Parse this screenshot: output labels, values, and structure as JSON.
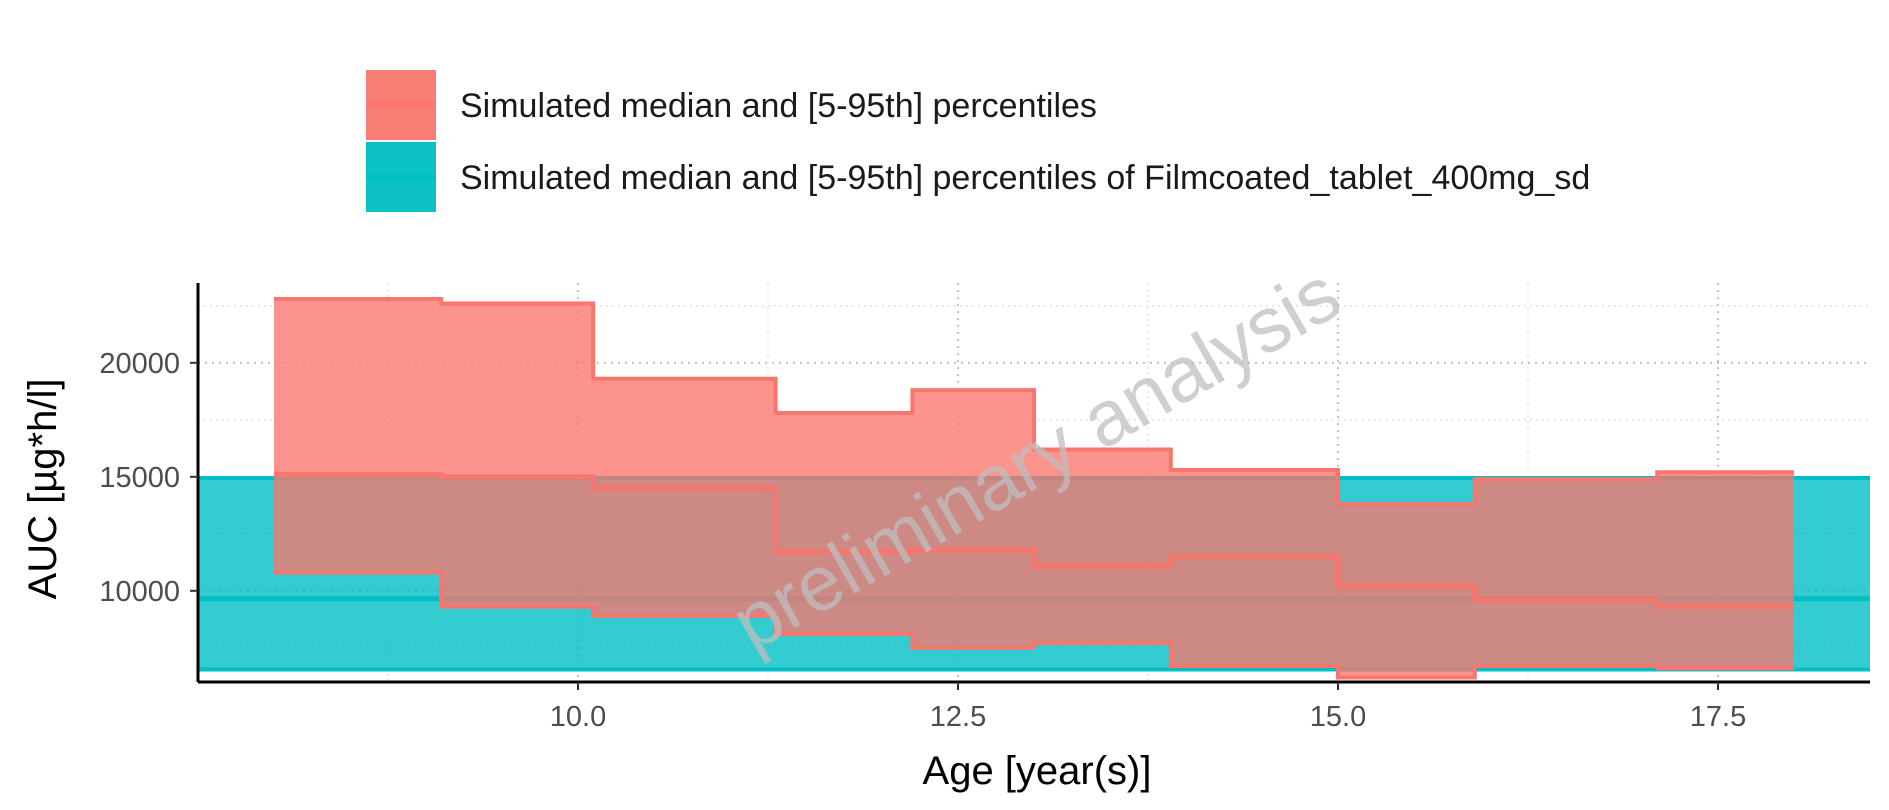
{
  "chart_data": {
    "type": "area",
    "xlabel": "Age [year(s)]",
    "ylabel": "AUC [µg*h/l]",
    "xlim": [
      7.5,
      18.5
    ],
    "ylim": [
      6000,
      23500
    ],
    "xticks": [
      10.0,
      12.5,
      15.0,
      17.5
    ],
    "xtick_labels": [
      "10.0",
      "12.5",
      "15.0",
      "17.5"
    ],
    "yticks": [
      10000,
      15000,
      20000
    ],
    "ytick_labels": [
      "10000",
      "15000",
      "20000"
    ],
    "grid": true,
    "legend_position": "top",
    "watermark": "preliminary analysis",
    "series": [
      {
        "name": "Simulated median and [5-95th] percentiles",
        "color": "#F8766D",
        "step_x": [
          8.0,
          9.1,
          10.1,
          11.3,
          12.2,
          13.0,
          13.9,
          15.0,
          15.9,
          17.1,
          18.0
        ],
        "median": [
          15100,
          15000,
          14500,
          11700,
          11800,
          11100,
          11500,
          10200,
          9600,
          9300
        ],
        "p5": [
          10800,
          9300,
          8900,
          8100,
          7500,
          7700,
          6700,
          6200,
          6700,
          6600
        ],
        "p95": [
          22800,
          22600,
          19300,
          17800,
          18800,
          16200,
          15300,
          13800,
          14900,
          15200
        ]
      },
      {
        "name": "Simulated median and [5-95th] percentiles of Filmcoated_tablet_400mg_sd",
        "color": "#00BFC4",
        "x_range": [
          7.5,
          18.5
        ],
        "median": 9650,
        "p5": 6550,
        "p95": 14950
      }
    ]
  }
}
